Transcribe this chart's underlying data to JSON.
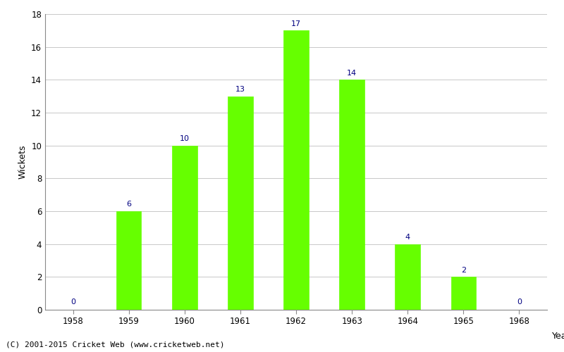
{
  "years": [
    1958,
    1959,
    1960,
    1961,
    1962,
    1963,
    1964,
    1965,
    1968
  ],
  "wickets": [
    0,
    6,
    10,
    13,
    17,
    14,
    4,
    2,
    0
  ],
  "bar_color": "#66ff00",
  "label_color": "#000080",
  "ylabel": "Wickets",
  "xlabel": "Year",
  "ylim": [
    0,
    18
  ],
  "yticks": [
    0,
    2,
    4,
    6,
    8,
    10,
    12,
    14,
    16,
    18
  ],
  "grid_color": "#c8c8c8",
  "background_color": "#ffffff",
  "footnote": "(C) 2001-2015 Cricket Web (www.cricketweb.net)",
  "label_fontsize": 8,
  "axis_label_fontsize": 9,
  "tick_fontsize": 8.5,
  "footnote_fontsize": 8,
  "bar_width": 0.45
}
